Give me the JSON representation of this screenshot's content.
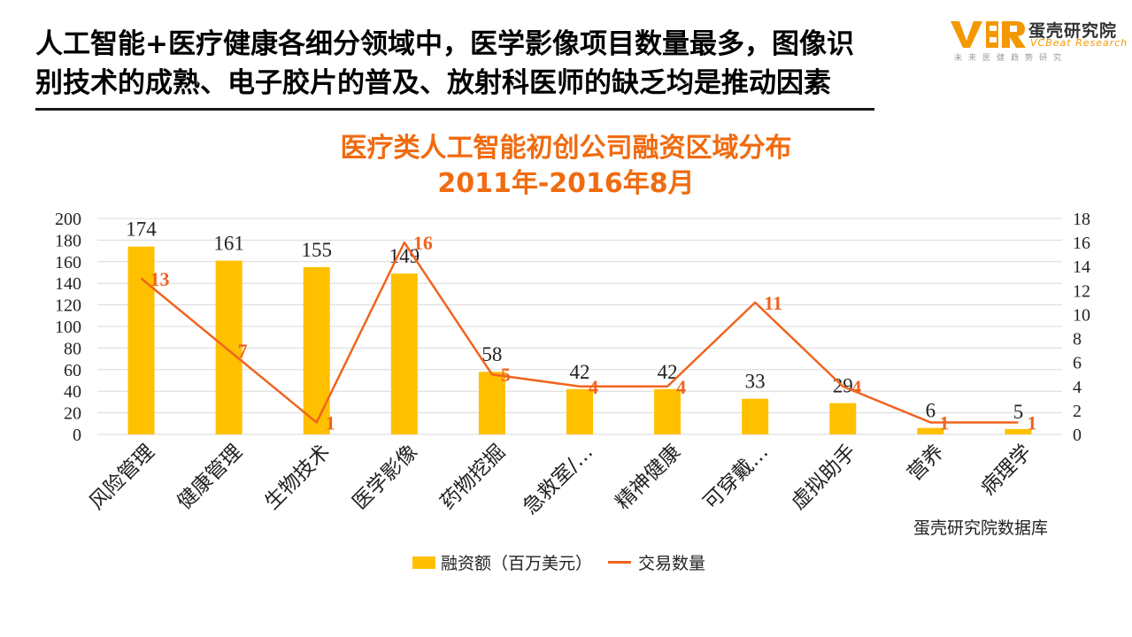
{
  "headline": {
    "line1": "人工智能+医疗健康各细分领域中，医学影像项目数量最多，图像识",
    "line2": "别技术的成熟、电子胶片的普及、放射科医师的缺乏均是推动因素"
  },
  "logo": {
    "mark": "VBR",
    "name_cn": "蛋壳研究院",
    "name_en": "VCBeat Research",
    "tagline": "未来医健趋势研究"
  },
  "colors": {
    "bar": "#ffc000",
    "line": "#f0641e",
    "title": "#f06b10",
    "logo_accent": "#f39800"
  },
  "source_note": "蛋壳研究院数据库",
  "chart_data": {
    "type": "bar",
    "title": "医疗类人工智能初创公司融资区域分布",
    "subtitle": "2011年-2016年8月",
    "categories": [
      "风险管理",
      "健康管理",
      "生物技术",
      "医学影像",
      "药物挖掘",
      "急救室/…",
      "精神健康",
      "可穿戴…",
      "虚拟助手",
      "营养",
      "病理学"
    ],
    "series": [
      {
        "name": "融资额（百万美元）",
        "type": "bar",
        "axis": "left",
        "values": [
          174,
          161,
          155,
          149,
          58,
          42,
          42,
          33,
          29,
          6,
          5
        ]
      },
      {
        "name": "交易数量",
        "type": "line",
        "axis": "right",
        "values": [
          13,
          7,
          1,
          16,
          5,
          4,
          4,
          11,
          4,
          1,
          1
        ]
      }
    ],
    "y_left": {
      "min": 0,
      "max": 200,
      "step": 20
    },
    "y_right": {
      "min": 0,
      "max": 18,
      "step": 2
    },
    "grid": true,
    "legend_position": "bottom"
  }
}
